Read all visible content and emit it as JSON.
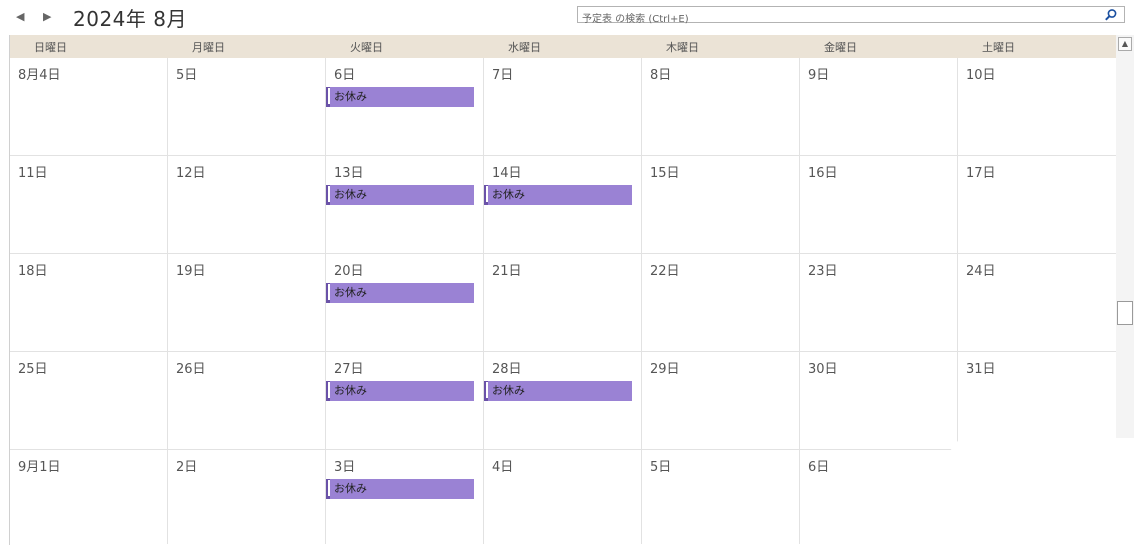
{
  "toolbar": {
    "prev": "◀",
    "next": "▶",
    "title": "2024年 8月"
  },
  "search": {
    "placeholder": "予定表 の検索 (Ctrl+E)"
  },
  "weekdays": [
    "日曜日",
    "月曜日",
    "火曜日",
    "水曜日",
    "木曜日",
    "金曜日",
    "土曜日"
  ],
  "weeks": [
    {
      "days": [
        {
          "label": "8月4日"
        },
        {
          "label": "5日"
        },
        {
          "label": "6日",
          "event": "お休み"
        },
        {
          "label": "7日"
        },
        {
          "label": "8日"
        },
        {
          "label": "9日"
        },
        {
          "label": "10日"
        }
      ]
    },
    {
      "days": [
        {
          "label": "11日"
        },
        {
          "label": "12日"
        },
        {
          "label": "13日",
          "event": "お休み"
        },
        {
          "label": "14日",
          "event": "お休み"
        },
        {
          "label": "15日"
        },
        {
          "label": "16日"
        },
        {
          "label": "17日"
        }
      ]
    },
    {
      "days": [
        {
          "label": "18日"
        },
        {
          "label": "19日"
        },
        {
          "label": "20日",
          "event": "お休み"
        },
        {
          "label": "21日"
        },
        {
          "label": "22日"
        },
        {
          "label": "23日"
        },
        {
          "label": "24日"
        }
      ]
    },
    {
      "days": [
        {
          "label": "25日"
        },
        {
          "label": "26日"
        },
        {
          "label": "27日",
          "event": "お休み"
        },
        {
          "label": "28日",
          "event": "お休み"
        },
        {
          "label": "29日"
        },
        {
          "label": "30日"
        },
        {
          "label": "31日"
        }
      ]
    },
    {
      "days": [
        {
          "label": "9月1日"
        },
        {
          "label": "2日"
        },
        {
          "label": "3日",
          "event": "お休み"
        },
        {
          "label": "4日"
        },
        {
          "label": "5日"
        },
        {
          "label": "6日"
        },
        {
          "label": ""
        }
      ]
    }
  ],
  "colors": {
    "event_fill": "#9a82d4",
    "event_border": "#6a52a8",
    "header_bg": "#ebe3d6"
  }
}
